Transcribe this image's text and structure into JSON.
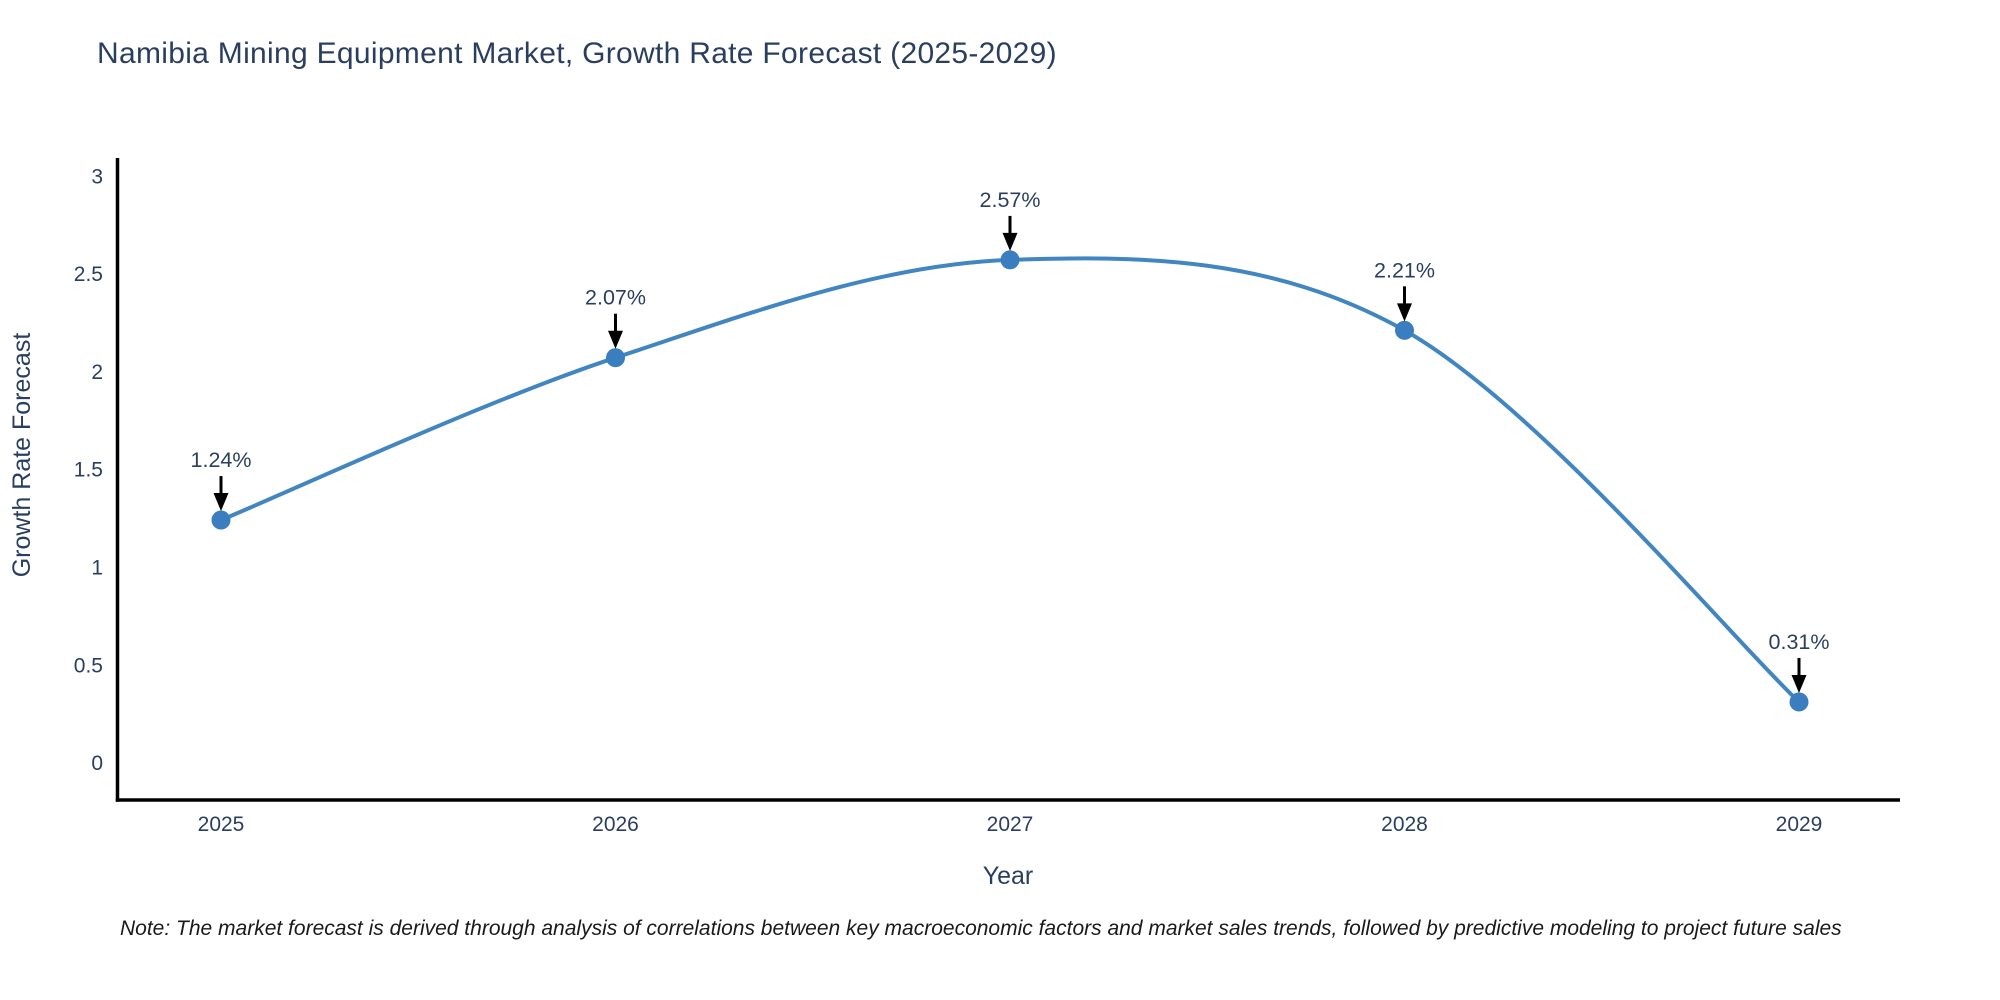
{
  "page": {
    "title": "Namibia Mining Equipment Market, Growth Rate Forecast (2025-2029)",
    "note": "Note: The market forecast is derived through analysis of correlations between key macroeconomic factors and market sales trends, followed by predictive modeling to project future sales"
  },
  "colors": {
    "background": "#ffffff",
    "title_text": "#2a3f5f",
    "axis_text": "#2a3f5f",
    "axis_line": "#000000",
    "series_line": "#4186c0",
    "marker_fill": "#3a7ebf",
    "annotation_text": "#2a3f5f",
    "arrow": "#000000",
    "note_text": "#1a1a1a"
  },
  "chart_data": {
    "type": "line",
    "title": "Namibia Mining Equipment Market, Growth Rate Forecast (2025-2029)",
    "xlabel": "Year",
    "ylabel": "Growth Rate Forecast",
    "x": [
      2025,
      2026,
      2027,
      2028,
      2029
    ],
    "series": [
      {
        "name": "Growth Rate Forecast",
        "values": [
          1.24,
          2.07,
          2.57,
          2.21,
          0.31
        ],
        "labels": [
          "1.24%",
          "2.07%",
          "2.57%",
          "2.21%",
          "0.31%"
        ]
      }
    ],
    "ylim": [
      0,
      3
    ],
    "yticks": [
      0,
      0.5,
      1,
      1.5,
      2,
      2.5,
      3
    ],
    "xticks": [
      "2025",
      "2026",
      "2027",
      "2028",
      "2029"
    ],
    "line_shape": "spline",
    "grid": false,
    "legend": "none",
    "annotations": "percentage value labels with black down-arrows above each data point"
  }
}
